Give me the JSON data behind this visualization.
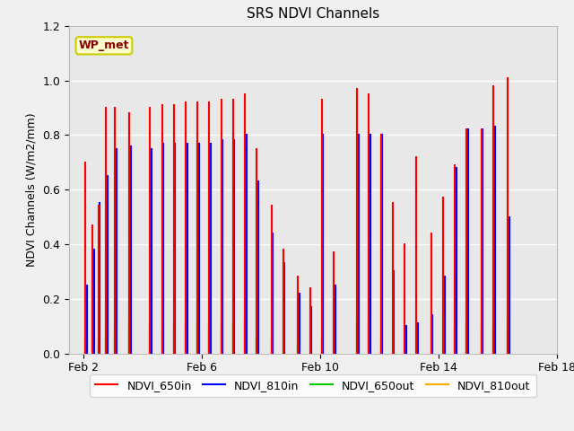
{
  "title": "SRS NDVI Channels",
  "ylabel": "NDVI Channels (W/m2/mm)",
  "ylim": [
    0.0,
    1.2
  ],
  "background_color": "#f0f0f0",
  "plot_bg_color": "#e8e8e8",
  "annotation_text": "WP_met",
  "annotation_color": "#8b0000",
  "annotation_bg": "#ffffcc",
  "annotation_border": "#cccc00",
  "yticks": [
    0.0,
    0.2,
    0.4,
    0.6,
    0.8,
    1.0,
    1.2
  ],
  "xtick_positions": [
    2,
    6,
    10,
    14,
    18
  ],
  "xtick_labels": [
    "Feb 2",
    "Feb 6",
    "Feb 10",
    "Feb 14",
    "Feb 18"
  ],
  "legend_labels": [
    "NDVI_650in",
    "NDVI_810in",
    "NDVI_650out",
    "NDVI_810out"
  ],
  "legend_colors": [
    "#ff0000",
    "#0000ff",
    "#00cc00",
    "#ffaa00"
  ],
  "series_650in": [
    [
      2.05,
      0.0
    ],
    [
      2.05,
      0.7
    ],
    [
      2.05,
      0.0
    ],
    [
      2.3,
      0.0
    ],
    [
      2.3,
      0.47
    ],
    [
      2.3,
      0.0
    ],
    [
      2.5,
      0.0
    ],
    [
      2.5,
      0.54
    ],
    [
      2.5,
      0.0
    ],
    [
      2.75,
      0.0
    ],
    [
      2.75,
      0.9
    ],
    [
      2.75,
      0.0
    ],
    [
      3.05,
      0.0
    ],
    [
      3.05,
      0.9
    ],
    [
      3.05,
      0.0
    ],
    [
      3.55,
      0.0
    ],
    [
      3.55,
      0.88
    ],
    [
      3.55,
      0.0
    ],
    [
      4.25,
      0.0
    ],
    [
      4.25,
      0.9
    ],
    [
      4.25,
      0.0
    ],
    [
      4.65,
      0.0
    ],
    [
      4.65,
      0.91
    ],
    [
      4.65,
      0.0
    ],
    [
      5.05,
      0.0
    ],
    [
      5.05,
      0.91
    ],
    [
      5.05,
      0.0
    ],
    [
      5.45,
      0.0
    ],
    [
      5.45,
      0.92
    ],
    [
      5.45,
      0.0
    ],
    [
      5.85,
      0.0
    ],
    [
      5.85,
      0.92
    ],
    [
      5.85,
      0.0
    ],
    [
      6.25,
      0.0
    ],
    [
      6.25,
      0.92
    ],
    [
      6.25,
      0.0
    ],
    [
      6.65,
      0.0
    ],
    [
      6.65,
      0.93
    ],
    [
      6.65,
      0.0
    ],
    [
      7.05,
      0.0
    ],
    [
      7.05,
      0.93
    ],
    [
      7.05,
      0.0
    ],
    [
      7.45,
      0.0
    ],
    [
      7.45,
      0.95
    ],
    [
      7.45,
      0.0
    ],
    [
      7.85,
      0.0
    ],
    [
      7.85,
      0.75
    ],
    [
      7.85,
      0.0
    ],
    [
      8.35,
      0.0
    ],
    [
      8.35,
      0.54
    ],
    [
      8.35,
      0.0
    ],
    [
      8.75,
      0.0
    ],
    [
      8.75,
      0.38
    ],
    [
      8.75,
      0.0
    ],
    [
      9.25,
      0.0
    ],
    [
      9.25,
      0.28
    ],
    [
      9.25,
      0.0
    ],
    [
      9.65,
      0.0
    ],
    [
      9.65,
      0.24
    ],
    [
      9.65,
      0.0
    ],
    [
      10.05,
      0.0
    ],
    [
      10.05,
      0.93
    ],
    [
      10.05,
      0.0
    ],
    [
      10.45,
      0.0
    ],
    [
      10.45,
      0.37
    ],
    [
      10.45,
      0.0
    ],
    [
      11.25,
      0.0
    ],
    [
      11.25,
      0.97
    ],
    [
      11.25,
      0.0
    ],
    [
      11.65,
      0.0
    ],
    [
      11.65,
      0.95
    ],
    [
      11.65,
      0.0
    ],
    [
      12.05,
      0.0
    ],
    [
      12.05,
      0.8
    ],
    [
      12.05,
      0.0
    ],
    [
      12.45,
      0.0
    ],
    [
      12.45,
      0.55
    ],
    [
      12.45,
      0.0
    ],
    [
      12.85,
      0.0
    ],
    [
      12.85,
      0.4
    ],
    [
      12.85,
      0.0
    ],
    [
      13.25,
      0.0
    ],
    [
      13.25,
      0.72
    ],
    [
      13.25,
      0.0
    ],
    [
      13.75,
      0.0
    ],
    [
      13.75,
      0.44
    ],
    [
      13.75,
      0.0
    ],
    [
      14.15,
      0.0
    ],
    [
      14.15,
      0.57
    ],
    [
      14.15,
      0.0
    ],
    [
      14.55,
      0.0
    ],
    [
      14.55,
      0.69
    ],
    [
      14.55,
      0.0
    ],
    [
      14.95,
      0.0
    ],
    [
      14.95,
      0.82
    ],
    [
      14.95,
      0.0
    ],
    [
      15.45,
      0.0
    ],
    [
      15.45,
      0.82
    ],
    [
      15.45,
      0.0
    ],
    [
      15.85,
      0.0
    ],
    [
      15.85,
      0.98
    ],
    [
      15.85,
      0.0
    ],
    [
      16.35,
      0.0
    ],
    [
      16.35,
      1.01
    ],
    [
      16.35,
      0.0
    ]
  ],
  "series_810in": [
    [
      2.1,
      0.0
    ],
    [
      2.1,
      0.25
    ],
    [
      2.1,
      0.0
    ],
    [
      2.35,
      0.0
    ],
    [
      2.35,
      0.38
    ],
    [
      2.35,
      0.0
    ],
    [
      2.55,
      0.0
    ],
    [
      2.55,
      0.55
    ],
    [
      2.55,
      0.0
    ],
    [
      2.8,
      0.0
    ],
    [
      2.8,
      0.65
    ],
    [
      2.8,
      0.0
    ],
    [
      3.1,
      0.0
    ],
    [
      3.1,
      0.75
    ],
    [
      3.1,
      0.0
    ],
    [
      3.6,
      0.0
    ],
    [
      3.6,
      0.76
    ],
    [
      3.6,
      0.0
    ],
    [
      4.3,
      0.0
    ],
    [
      4.3,
      0.75
    ],
    [
      4.3,
      0.0
    ],
    [
      4.7,
      0.0
    ],
    [
      4.7,
      0.77
    ],
    [
      4.7,
      0.0
    ],
    [
      5.1,
      0.0
    ],
    [
      5.1,
      0.77
    ],
    [
      5.1,
      0.0
    ],
    [
      5.5,
      0.0
    ],
    [
      5.5,
      0.77
    ],
    [
      5.5,
      0.0
    ],
    [
      5.9,
      0.0
    ],
    [
      5.9,
      0.77
    ],
    [
      5.9,
      0.0
    ],
    [
      6.3,
      0.0
    ],
    [
      6.3,
      0.77
    ],
    [
      6.3,
      0.0
    ],
    [
      6.7,
      0.0
    ],
    [
      6.7,
      0.78
    ],
    [
      6.7,
      0.0
    ],
    [
      7.1,
      0.0
    ],
    [
      7.1,
      0.78
    ],
    [
      7.1,
      0.0
    ],
    [
      7.5,
      0.0
    ],
    [
      7.5,
      0.8
    ],
    [
      7.5,
      0.0
    ],
    [
      7.9,
      0.0
    ],
    [
      7.9,
      0.63
    ],
    [
      7.9,
      0.0
    ],
    [
      8.4,
      0.0
    ],
    [
      8.4,
      0.44
    ],
    [
      8.4,
      0.0
    ],
    [
      8.8,
      0.0
    ],
    [
      8.8,
      0.33
    ],
    [
      8.8,
      0.0
    ],
    [
      9.3,
      0.0
    ],
    [
      9.3,
      0.22
    ],
    [
      9.3,
      0.0
    ],
    [
      9.7,
      0.0
    ],
    [
      9.7,
      0.17
    ],
    [
      9.7,
      0.0
    ],
    [
      10.1,
      0.0
    ],
    [
      10.1,
      0.8
    ],
    [
      10.1,
      0.0
    ],
    [
      10.5,
      0.0
    ],
    [
      10.5,
      0.25
    ],
    [
      10.5,
      0.0
    ],
    [
      11.3,
      0.0
    ],
    [
      11.3,
      0.8
    ],
    [
      11.3,
      0.0
    ],
    [
      11.7,
      0.0
    ],
    [
      11.7,
      0.8
    ],
    [
      11.7,
      0.0
    ],
    [
      12.1,
      0.0
    ],
    [
      12.1,
      0.8
    ],
    [
      12.1,
      0.0
    ],
    [
      12.5,
      0.0
    ],
    [
      12.5,
      0.3
    ],
    [
      12.5,
      0.0
    ],
    [
      12.9,
      0.0
    ],
    [
      12.9,
      0.1
    ],
    [
      12.9,
      0.0
    ],
    [
      13.3,
      0.0
    ],
    [
      13.3,
      0.11
    ],
    [
      13.3,
      0.0
    ],
    [
      13.8,
      0.0
    ],
    [
      13.8,
      0.14
    ],
    [
      13.8,
      0.0
    ],
    [
      14.2,
      0.0
    ],
    [
      14.2,
      0.28
    ],
    [
      14.2,
      0.0
    ],
    [
      14.6,
      0.0
    ],
    [
      14.6,
      0.68
    ],
    [
      14.6,
      0.0
    ],
    [
      15.0,
      0.0
    ],
    [
      15.0,
      0.82
    ],
    [
      15.0,
      0.0
    ],
    [
      15.5,
      0.0
    ],
    [
      15.5,
      0.82
    ],
    [
      15.5,
      0.0
    ],
    [
      15.9,
      0.0
    ],
    [
      15.9,
      0.83
    ],
    [
      15.9,
      0.0
    ],
    [
      16.4,
      0.0
    ],
    [
      16.4,
      0.5
    ],
    [
      16.4,
      0.0
    ]
  ],
  "series_650out": [
    [
      2.05,
      0.0
    ],
    [
      2.05,
      0.04
    ],
    [
      2.05,
      0.0
    ],
    [
      2.5,
      0.0
    ],
    [
      2.5,
      0.05
    ],
    [
      2.5,
      0.0
    ],
    [
      2.75,
      0.0
    ],
    [
      2.75,
      0.06
    ],
    [
      2.75,
      0.0
    ],
    [
      3.05,
      0.0
    ],
    [
      3.05,
      0.06
    ],
    [
      3.05,
      0.0
    ],
    [
      3.55,
      0.0
    ],
    [
      3.55,
      0.09
    ],
    [
      3.55,
      0.0
    ],
    [
      4.25,
      0.0
    ],
    [
      4.25,
      0.09
    ],
    [
      4.25,
      0.0
    ],
    [
      4.65,
      0.0
    ],
    [
      4.65,
      0.09
    ],
    [
      4.65,
      0.0
    ],
    [
      5.05,
      0.0
    ],
    [
      5.05,
      0.1
    ],
    [
      5.05,
      0.0
    ],
    [
      5.45,
      0.0
    ],
    [
      5.45,
      0.1
    ],
    [
      5.45,
      0.0
    ],
    [
      5.85,
      0.0
    ],
    [
      5.85,
      0.1
    ],
    [
      5.85,
      0.0
    ],
    [
      6.25,
      0.0
    ],
    [
      6.25,
      0.1
    ],
    [
      6.25,
      0.0
    ],
    [
      6.65,
      0.0
    ],
    [
      6.65,
      0.1
    ],
    [
      6.65,
      0.0
    ],
    [
      7.05,
      0.0
    ],
    [
      7.05,
      0.1
    ],
    [
      7.05,
      0.0
    ],
    [
      7.45,
      0.0
    ],
    [
      7.45,
      0.12
    ],
    [
      7.45,
      0.0
    ],
    [
      7.85,
      0.0
    ],
    [
      7.85,
      0.06
    ],
    [
      7.85,
      0.0
    ],
    [
      8.35,
      0.0
    ],
    [
      8.35,
      0.05
    ],
    [
      8.35,
      0.0
    ],
    [
      9.25,
      0.0
    ],
    [
      9.25,
      0.04
    ],
    [
      9.25,
      0.0
    ],
    [
      10.05,
      0.0
    ],
    [
      10.05,
      0.05
    ],
    [
      10.05,
      0.0
    ],
    [
      11.25,
      0.0
    ],
    [
      11.25,
      0.13
    ],
    [
      11.25,
      0.0
    ],
    [
      11.65,
      0.0
    ],
    [
      11.65,
      0.13
    ],
    [
      11.65,
      0.0
    ],
    [
      12.05,
      0.0
    ],
    [
      12.05,
      0.05
    ],
    [
      12.05,
      0.0
    ],
    [
      14.55,
      0.0
    ],
    [
      14.55,
      0.1
    ],
    [
      14.55,
      0.0
    ],
    [
      14.95,
      0.0
    ],
    [
      14.95,
      0.11
    ],
    [
      14.95,
      0.0
    ],
    [
      15.45,
      0.0
    ],
    [
      15.45,
      0.1
    ],
    [
      15.45,
      0.0
    ],
    [
      15.85,
      0.0
    ],
    [
      15.85,
      0.1
    ],
    [
      15.85,
      0.0
    ],
    [
      16.35,
      0.0
    ],
    [
      16.35,
      0.1
    ],
    [
      16.35,
      0.0
    ]
  ],
  "series_810out": [
    [
      2.1,
      0.0
    ],
    [
      2.1,
      0.05
    ],
    [
      2.1,
      0.0
    ],
    [
      2.5,
      0.0
    ],
    [
      2.5,
      0.08
    ],
    [
      2.5,
      0.0
    ],
    [
      2.75,
      0.0
    ],
    [
      2.75,
      0.09
    ],
    [
      2.75,
      0.0
    ],
    [
      3.05,
      0.0
    ],
    [
      3.05,
      0.09
    ],
    [
      3.05,
      0.0
    ],
    [
      3.55,
      0.0
    ],
    [
      3.55,
      0.12
    ],
    [
      3.55,
      0.0
    ],
    [
      4.25,
      0.0
    ],
    [
      4.25,
      0.1
    ],
    [
      4.25,
      0.0
    ],
    [
      4.65,
      0.0
    ],
    [
      4.65,
      0.11
    ],
    [
      4.65,
      0.0
    ],
    [
      5.05,
      0.0
    ],
    [
      5.05,
      0.11
    ],
    [
      5.05,
      0.0
    ],
    [
      5.45,
      0.0
    ],
    [
      5.45,
      0.11
    ],
    [
      5.45,
      0.0
    ],
    [
      5.85,
      0.0
    ],
    [
      5.85,
      0.11
    ],
    [
      5.85,
      0.0
    ],
    [
      6.25,
      0.0
    ],
    [
      6.25,
      0.11
    ],
    [
      6.25,
      0.0
    ],
    [
      6.65,
      0.0
    ],
    [
      6.65,
      0.12
    ],
    [
      6.65,
      0.0
    ],
    [
      7.05,
      0.0
    ],
    [
      7.05,
      0.12
    ],
    [
      7.05,
      0.0
    ],
    [
      7.45,
      0.0
    ],
    [
      7.45,
      0.13
    ],
    [
      7.45,
      0.0
    ],
    [
      7.85,
      0.0
    ],
    [
      7.85,
      0.07
    ],
    [
      7.85,
      0.0
    ],
    [
      8.35,
      0.0
    ],
    [
      8.35,
      0.06
    ],
    [
      8.35,
      0.0
    ],
    [
      9.25,
      0.0
    ],
    [
      9.25,
      0.04
    ],
    [
      9.25,
      0.0
    ],
    [
      10.05,
      0.0
    ],
    [
      10.05,
      0.05
    ],
    [
      10.05,
      0.0
    ],
    [
      11.25,
      0.0
    ],
    [
      11.25,
      0.13
    ],
    [
      11.25,
      0.0
    ],
    [
      11.65,
      0.0
    ],
    [
      11.65,
      0.12
    ],
    [
      11.65,
      0.0
    ],
    [
      12.05,
      0.0
    ],
    [
      12.05,
      0.05
    ],
    [
      12.05,
      0.0
    ],
    [
      14.55,
      0.0
    ],
    [
      14.55,
      0.09
    ],
    [
      14.55,
      0.0
    ],
    [
      14.95,
      0.0
    ],
    [
      14.95,
      0.12
    ],
    [
      14.95,
      0.0
    ],
    [
      15.45,
      0.0
    ],
    [
      15.45,
      0.12
    ],
    [
      15.45,
      0.0
    ],
    [
      15.85,
      0.0
    ],
    [
      15.85,
      0.1
    ],
    [
      15.85,
      0.0
    ],
    [
      16.35,
      0.0
    ],
    [
      16.35,
      0.14
    ],
    [
      16.35,
      0.0
    ]
  ]
}
